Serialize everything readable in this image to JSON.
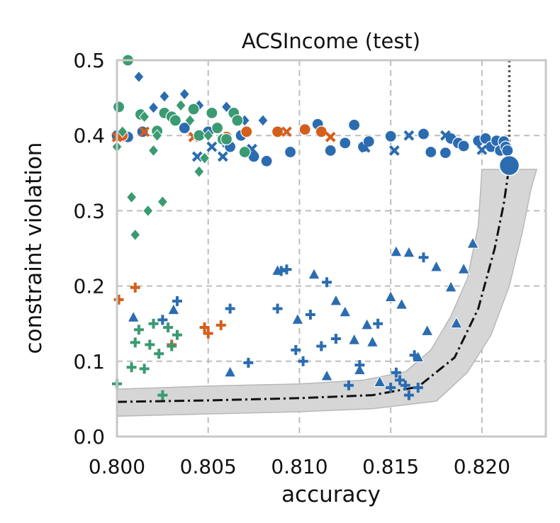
{
  "chart_data": {
    "type": "scatter",
    "title": "ACSIncome (test)",
    "xlabel": "accuracy",
    "ylabel": "constraint violation",
    "xlim": [
      0.8,
      0.8235
    ],
    "ylim": [
      0.0,
      0.5
    ],
    "x_ticks": [
      0.8,
      0.805,
      0.81,
      0.815,
      0.82
    ],
    "x_tick_labels": [
      "0.800",
      "0.805",
      "0.810",
      "0.815",
      "0.820"
    ],
    "y_ticks": [
      0.0,
      0.1,
      0.2,
      0.3,
      0.4,
      0.5
    ],
    "y_tick_labels": [
      "0.0",
      "0.1",
      "0.2",
      "0.3",
      "0.4",
      "0.5"
    ],
    "grid": true,
    "colors": {
      "blue": "#2b6cb0",
      "orange": "#d35f1c",
      "green": "#3a9a72",
      "band": "#d6d6d6",
      "grid": "#bdbdbd",
      "frame": "#c8c8c8"
    },
    "reference": {
      "unconstrained_point": {
        "x": 0.8215,
        "y": 0.36
      },
      "vertical_line_x": 0.8215,
      "curve": {
        "x": [
          0.8,
          0.805,
          0.81,
          0.814,
          0.8165,
          0.8185,
          0.8198,
          0.8207,
          0.8212,
          0.8215
        ],
        "y": [
          0.046,
          0.048,
          0.051,
          0.055,
          0.066,
          0.105,
          0.17,
          0.25,
          0.31,
          0.36
        ]
      },
      "band_upper": {
        "x": [
          0.8,
          0.805,
          0.81,
          0.8135,
          0.8158,
          0.8172,
          0.8183,
          0.8192,
          0.8198,
          0.82,
          0.823
        ],
        "y": [
          0.063,
          0.067,
          0.07,
          0.075,
          0.086,
          0.115,
          0.16,
          0.21,
          0.28,
          0.355,
          0.355
        ]
      },
      "band_lower": {
        "x": [
          0.8,
          0.805,
          0.81,
          0.814,
          0.8175,
          0.8192,
          0.8205,
          0.8215,
          0.8222,
          0.8227,
          0.823
        ],
        "y": [
          0.027,
          0.03,
          0.033,
          0.037,
          0.047,
          0.085,
          0.135,
          0.2,
          0.27,
          0.33,
          0.355
        ]
      }
    },
    "series": [
      {
        "color": "blue",
        "marker": "circle",
        "x": [
          0.8,
          0.8003,
          0.8006,
          0.8014,
          0.8037,
          0.805,
          0.8058,
          0.806,
          0.8062,
          0.8068,
          0.8075,
          0.8082,
          0.8095,
          0.811,
          0.8117,
          0.8125,
          0.813,
          0.8135,
          0.8138,
          0.815,
          0.8168,
          0.8172,
          0.818,
          0.8183,
          0.8187,
          0.819,
          0.8198,
          0.8202,
          0.8205,
          0.8208,
          0.821,
          0.8212,
          0.8213,
          0.8214
        ],
        "y": [
          0.4,
          0.402,
          0.398,
          0.405,
          0.41,
          0.405,
          0.395,
          0.39,
          0.385,
          0.4,
          0.372,
          0.366,
          0.378,
          0.415,
          0.38,
          0.39,
          0.414,
          0.385,
          0.392,
          0.399,
          0.402,
          0.378,
          0.377,
          0.396,
          0.39,
          0.386,
          0.393,
          0.396,
          0.385,
          0.393,
          0.38,
          0.392,
          0.385,
          0.38
        ]
      },
      {
        "color": "blue",
        "marker": "diamond",
        "x": [
          0.8012,
          0.802,
          0.8026,
          0.8037,
          0.8045,
          0.806,
          0.807,
          0.808
        ],
        "y": [
          0.478,
          0.437,
          0.452,
          0.455,
          0.44,
          0.438,
          0.42,
          0.42
        ]
      },
      {
        "color": "blue",
        "marker": "x",
        "x": [
          0.8044,
          0.8052,
          0.8058,
          0.8074,
          0.8136,
          0.8152,
          0.816,
          0.818,
          0.82
        ],
        "y": [
          0.372,
          0.385,
          0.372,
          0.382,
          0.384,
          0.38,
          0.4,
          0.4,
          0.381
        ]
      },
      {
        "color": "blue",
        "marker": "triangle",
        "x": [
          0.8009,
          0.8031,
          0.8062,
          0.8088,
          0.8099,
          0.8108,
          0.8115,
          0.812,
          0.8125,
          0.813,
          0.8133,
          0.8137,
          0.814,
          0.8144,
          0.815,
          0.8153,
          0.8156,
          0.816,
          0.8165,
          0.817,
          0.8175,
          0.8183,
          0.8186,
          0.819,
          0.8195
        ],
        "y": [
          0.158,
          0.168,
          0.085,
          0.22,
          0.155,
          0.215,
          0.08,
          0.18,
          0.165,
          0.128,
          0.088,
          0.148,
          0.125,
          0.072,
          0.185,
          0.245,
          0.175,
          0.244,
          0.105,
          0.14,
          0.225,
          0.198,
          0.15,
          0.222,
          0.256
        ]
      },
      {
        "color": "blue",
        "marker": "plus",
        "x": [
          0.8025,
          0.8033,
          0.8062,
          0.8072,
          0.8088,
          0.809,
          0.8093,
          0.8098,
          0.8102,
          0.8106,
          0.8112,
          0.8115,
          0.812,
          0.8127,
          0.8133,
          0.8143,
          0.815,
          0.8153,
          0.8155,
          0.8158,
          0.816,
          0.8163,
          0.8165,
          0.8168
        ],
        "y": [
          0.155,
          0.18,
          0.17,
          0.098,
          0.17,
          0.22,
          0.222,
          0.115,
          0.1,
          0.162,
          0.12,
          0.205,
          0.13,
          0.068,
          0.095,
          0.15,
          0.065,
          0.085,
          0.075,
          0.068,
          0.055,
          0.108,
          0.065,
          0.238
        ]
      },
      {
        "color": "orange",
        "marker": "circle",
        "x": [
          0.8003,
          0.806,
          0.8071,
          0.8088,
          0.8103,
          0.8112
        ],
        "y": [
          0.4,
          0.398,
          0.405,
          0.405,
          0.408,
          0.405
        ]
      },
      {
        "color": "orange",
        "marker": "x",
        "x": [
          0.8,
          0.8015,
          0.8042,
          0.8093,
          0.8117
        ],
        "y": [
          0.398,
          0.405,
          0.398,
          0.405,
          0.398
        ]
      },
      {
        "color": "orange",
        "marker": "plus",
        "x": [
          0.8001,
          0.801,
          0.803,
          0.8048,
          0.805,
          0.8057
        ],
        "y": [
          0.182,
          0.198,
          0.122,
          0.145,
          0.137,
          0.148
        ]
      },
      {
        "color": "green",
        "marker": "circle",
        "x": [
          0.8001,
          0.8006,
          0.8013,
          0.8022,
          0.8026,
          0.803,
          0.8032,
          0.8042,
          0.8045,
          0.8052,
          0.8055,
          0.8058,
          0.806,
          0.8064,
          0.8066,
          0.807
        ],
        "y": [
          0.438,
          0.5,
          0.428,
          0.406,
          0.43,
          0.425,
          0.42,
          0.435,
          0.4,
          0.43,
          0.41,
          0.395,
          0.395,
          0.43,
          0.42,
          0.378
        ]
      },
      {
        "color": "green",
        "marker": "diamond",
        "x": [
          0.8,
          0.8003,
          0.8008,
          0.801,
          0.8015,
          0.8017,
          0.802,
          0.8022,
          0.8025,
          0.8035,
          0.804,
          0.8045,
          0.8048,
          0.805
        ],
        "y": [
          0.385,
          0.405,
          0.318,
          0.268,
          0.425,
          0.3,
          0.38,
          0.4,
          0.312,
          0.44,
          0.42,
          0.352,
          0.37,
          0.4
        ]
      },
      {
        "color": "green",
        "marker": "plus",
        "x": [
          0.8,
          0.8008,
          0.801,
          0.8012,
          0.8015,
          0.8018,
          0.802,
          0.8023,
          0.8025,
          0.8028,
          0.803,
          0.8033
        ],
        "y": [
          0.07,
          0.092,
          0.125,
          0.142,
          0.09,
          0.122,
          0.15,
          0.11,
          0.055,
          0.145,
          0.12,
          0.135
        ]
      }
    ]
  }
}
